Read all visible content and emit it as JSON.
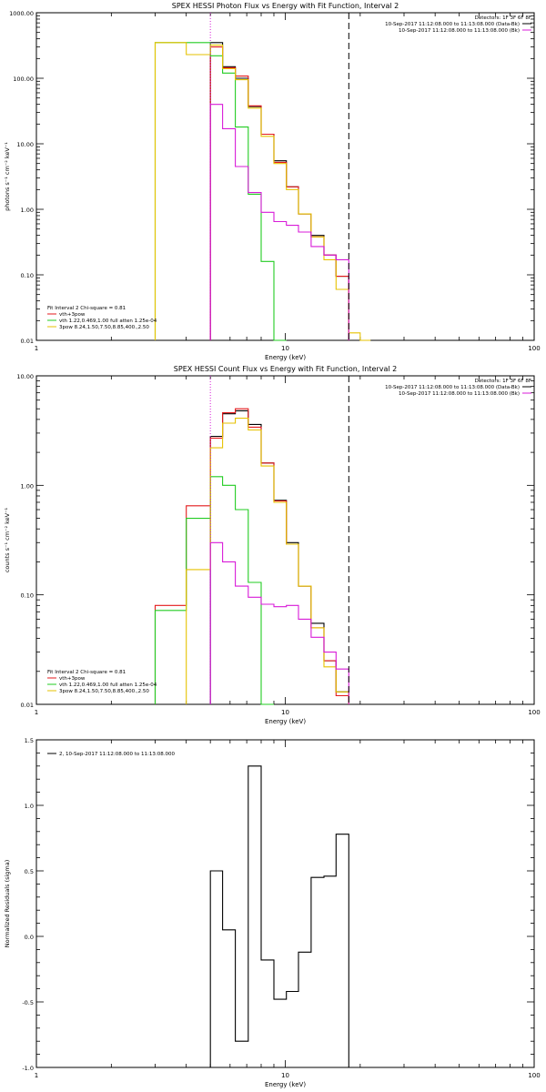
{
  "colors": {
    "black": "#000000",
    "red": "#e41a1c",
    "green": "#22cc22",
    "yellow": "#e6c200",
    "magenta": "#d81bd8"
  },
  "chart_data": [
    {
      "type": "line",
      "title": "SPEX HESSI Photon Flux vs Energy with Fit Function, Interval 2",
      "xlabel": "Energy (keV)",
      "ylabel": "photons s⁻¹ cm⁻² keV⁻¹",
      "xscale": "log",
      "yscale": "log",
      "xlim": [
        1,
        100
      ],
      "ylim": [
        0.01,
        1000
      ],
      "xticks": [
        {
          "v": 1,
          "t": "1"
        },
        {
          "v": 10,
          "t": "10"
        },
        {
          "v": 100,
          "t": "100"
        }
      ],
      "yticks": [
        {
          "v": 0.01,
          "t": "0.01"
        },
        {
          "v": 0.1,
          "t": "0.10"
        },
        {
          "v": 1,
          "t": "1.00"
        },
        {
          "v": 10,
          "t": "10.00"
        },
        {
          "v": 100,
          "t": "100.00"
        },
        {
          "v": 1000,
          "t": "1000.00"
        }
      ],
      "info": [
        "Detectors: 1F 3F 6F 8F",
        "10-Sep-2017 11:12:08.000 to 11:13:08.000 (Data-Bk)",
        "10-Sep-2017 11:12:08.000 to 11:13:08.000 (Bk)"
      ],
      "legend": [
        "Fit Interval 2   Chi-square = 0.81",
        "vth+3pow",
        "vth 1.22,0.469,1.00  full atten 1.25e-04",
        "3pow 8.24,1.50,7.50,8.85,400.,2.50"
      ],
      "vlines": [
        {
          "x": 5,
          "style": "dotted",
          "color": "magenta"
        },
        {
          "x": 18,
          "style": "dashed",
          "color": "black"
        }
      ],
      "series": [
        {
          "name": "Data-Bk",
          "color": "black",
          "edges": [
            5,
            5.6,
            6.3,
            7.1,
            8,
            9,
            10.1,
            11.3,
            12.7,
            14.3,
            16,
            18
          ],
          "values": [
            350,
            150,
            100,
            37,
            14,
            5.5,
            2.2,
            0.85,
            0.4,
            0.2,
            0.095
          ]
        },
        {
          "name": "vth+3pow",
          "color": "red",
          "edges": [
            5,
            5.6,
            6.3,
            7.1,
            8,
            9,
            10.1,
            11.3,
            12.7,
            14.3,
            16,
            18
          ],
          "values": [
            300,
            145,
            108,
            38,
            14,
            5.2,
            2.2,
            0.85,
            0.38,
            0.2,
            0.095
          ]
        },
        {
          "name": "vth",
          "color": "green",
          "edges": [
            3,
            5,
            5.6,
            6.3,
            7.1,
            8,
            9,
            10.1
          ],
          "values": [
            350,
            220,
            120,
            18,
            1.7,
            0.16,
            0.01
          ]
        },
        {
          "name": "3pow",
          "color": "yellow",
          "edges": [
            3,
            4,
            5,
            5.6,
            6.3,
            7.1,
            8,
            9,
            10.1,
            11.3,
            12.7,
            14.3,
            16,
            18,
            20,
            22
          ],
          "values": [
            350,
            230,
            320,
            140,
            95,
            35,
            13,
            5,
            2,
            0.85,
            0.38,
            0.17,
            0.06,
            0.013,
            0.01
          ]
        },
        {
          "name": "Bk",
          "color": "magenta",
          "edges": [
            5,
            5.6,
            6.3,
            7.1,
            8,
            9,
            10.1,
            11.3,
            12.7,
            14.3,
            16,
            18
          ],
          "values": [
            40,
            17,
            4.5,
            1.8,
            0.9,
            0.65,
            0.57,
            0.45,
            0.27,
            0.2,
            0.17
          ]
        }
      ]
    },
    {
      "type": "line",
      "title": "SPEX HESSI Count Flux vs Energy with Fit Function, Interval 2",
      "xlabel": "Energy (keV)",
      "ylabel": "counts s⁻¹ cm⁻² keV⁻¹",
      "xscale": "log",
      "yscale": "log",
      "xlim": [
        1,
        100
      ],
      "ylim": [
        0.01,
        10
      ],
      "xticks": [
        {
          "v": 1,
          "t": "1"
        },
        {
          "v": 10,
          "t": "10"
        },
        {
          "v": 100,
          "t": "100"
        }
      ],
      "yticks": [
        {
          "v": 0.01,
          "t": "0.01"
        },
        {
          "v": 0.1,
          "t": "0.10"
        },
        {
          "v": 1,
          "t": "1.00"
        },
        {
          "v": 10,
          "t": "10.00"
        }
      ],
      "info": [
        "Detectors: 1F 3F 6F 8F",
        "10-Sep-2017 11:12:08.000 to 11:13:08.000 (Data-Bk)",
        "10-Sep-2017 11:12:08.000 to 11:13:08.000 (Bk)"
      ],
      "legend": [
        "Fit Interval 2   Chi-square = 0.81",
        "vth+3pow",
        "vth 1.22,0.469,1.00  full atten 1.25e-04",
        "3pow 8.24,1.50,7.50,8.85,400.,2.50"
      ],
      "vlines": [
        {
          "x": 5,
          "style": "dotted",
          "color": "magenta"
        },
        {
          "x": 18,
          "style": "dashed",
          "color": "black"
        }
      ],
      "series": [
        {
          "name": "Data-Bk",
          "color": "black",
          "edges": [
            5,
            5.6,
            6.3,
            7.1,
            8,
            9,
            10.1,
            11.3,
            12.7,
            14.3,
            16,
            18
          ],
          "values": [
            2.8,
            4.5,
            4.8,
            3.6,
            1.6,
            0.73,
            0.3,
            0.12,
            0.055,
            0.025,
            0.013
          ]
        },
        {
          "name": "vth+3pow",
          "color": "red",
          "edges": [
            3,
            4,
            5,
            5.6,
            6.3,
            7.1,
            8,
            9,
            10.1,
            11.3,
            12.7,
            14.3,
            16,
            18
          ],
          "values": [
            0.08,
            0.65,
            2.7,
            4.6,
            5,
            3.4,
            1.6,
            0.72,
            0.29,
            0.12,
            0.05,
            0.025,
            0.012
          ]
        },
        {
          "name": "vth",
          "color": "green",
          "edges": [
            3,
            4,
            5,
            5.6,
            6.3,
            7.1,
            8,
            9
          ],
          "values": [
            0.072,
            0.5,
            1.2,
            1.0,
            0.6,
            0.13,
            0.01
          ]
        },
        {
          "name": "3pow",
          "color": "yellow",
          "edges": [
            4,
            5,
            5.6,
            6.3,
            7.1,
            8,
            9,
            10.1,
            11.3,
            12.7,
            14.3,
            16,
            18
          ],
          "values": [
            0.17,
            2.2,
            3.7,
            4.1,
            3.2,
            1.5,
            0.7,
            0.29,
            0.12,
            0.05,
            0.022,
            0.013
          ]
        },
        {
          "name": "Bk",
          "color": "magenta",
          "edges": [
            5,
            5.6,
            6.3,
            7.1,
            8,
            9,
            10.1,
            11.3,
            12.7,
            14.3,
            16,
            18
          ],
          "values": [
            0.3,
            0.2,
            0.12,
            0.095,
            0.082,
            0.078,
            0.08,
            0.06,
            0.041,
            0.03,
            0.021
          ]
        }
      ]
    },
    {
      "type": "line",
      "title": "",
      "xlabel": "Energy (keV)",
      "ylabel": "Normalized Residuals (sigma)",
      "xscale": "log",
      "yscale": "linear",
      "xlim": [
        1,
        100
      ],
      "ylim": [
        -1,
        1.5
      ],
      "xticks": [
        {
          "v": 1,
          "t": "1"
        },
        {
          "v": 10,
          "t": "10"
        },
        {
          "v": 100,
          "t": "100"
        }
      ],
      "yticks": [
        {
          "v": -1,
          "t": "-1.0"
        },
        {
          "v": -0.5,
          "t": "-0.5"
        },
        {
          "v": 0,
          "t": "0.0"
        },
        {
          "v": 0.5,
          "t": "0.5"
        },
        {
          "v": 1,
          "t": "1.0"
        },
        {
          "v": 1.5,
          "t": "1.5"
        }
      ],
      "info": [],
      "legend": [
        "2, 10-Sep-2017 11:12:08.000 to 11:13:08.000"
      ],
      "vlines": [],
      "series": [
        {
          "name": "2, 10-Sep-2017 11:12:08.000 to 11:13:08.000",
          "color": "black",
          "edges": [
            5,
            5.6,
            6.3,
            7.1,
            8,
            9,
            10.1,
            11.3,
            12.7,
            14.3,
            16,
            18
          ],
          "values": [
            0.5,
            0.05,
            -0.8,
            1.3,
            -0.18,
            -0.48,
            -0.42,
            -0.12,
            0.45,
            0.46,
            0.78
          ]
        }
      ]
    }
  ]
}
